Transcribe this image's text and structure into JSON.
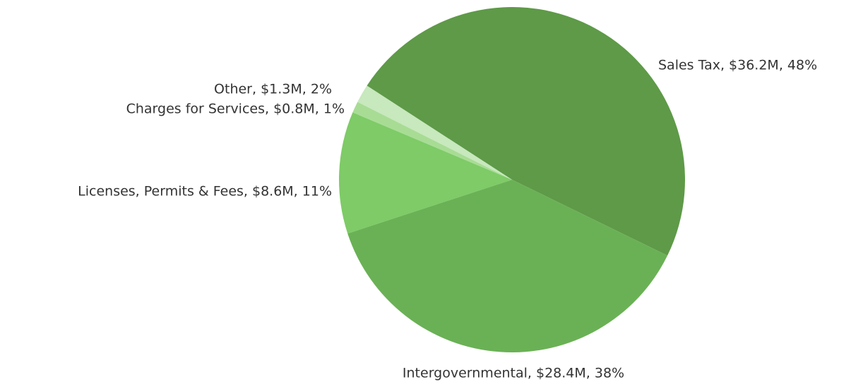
{
  "chart_data": {
    "type": "pie",
    "values": [
      36.2,
      28.4,
      8.6,
      0.8,
      1.3
    ],
    "value_labels": [
      "Sales Tax, $36.2M, 48%",
      "Intergovernmental, $28.4M, 38%",
      "Licenses, Permits & Fees, $8.6M, 11%",
      "Charges for Services, $0.8M, 1%",
      "Other, $1.3M, 2%"
    ],
    "colors": [
      "#5e9a48",
      "#6ab155",
      "#7ecb67",
      "#a8dc95",
      "#c8e8bd"
    ]
  }
}
